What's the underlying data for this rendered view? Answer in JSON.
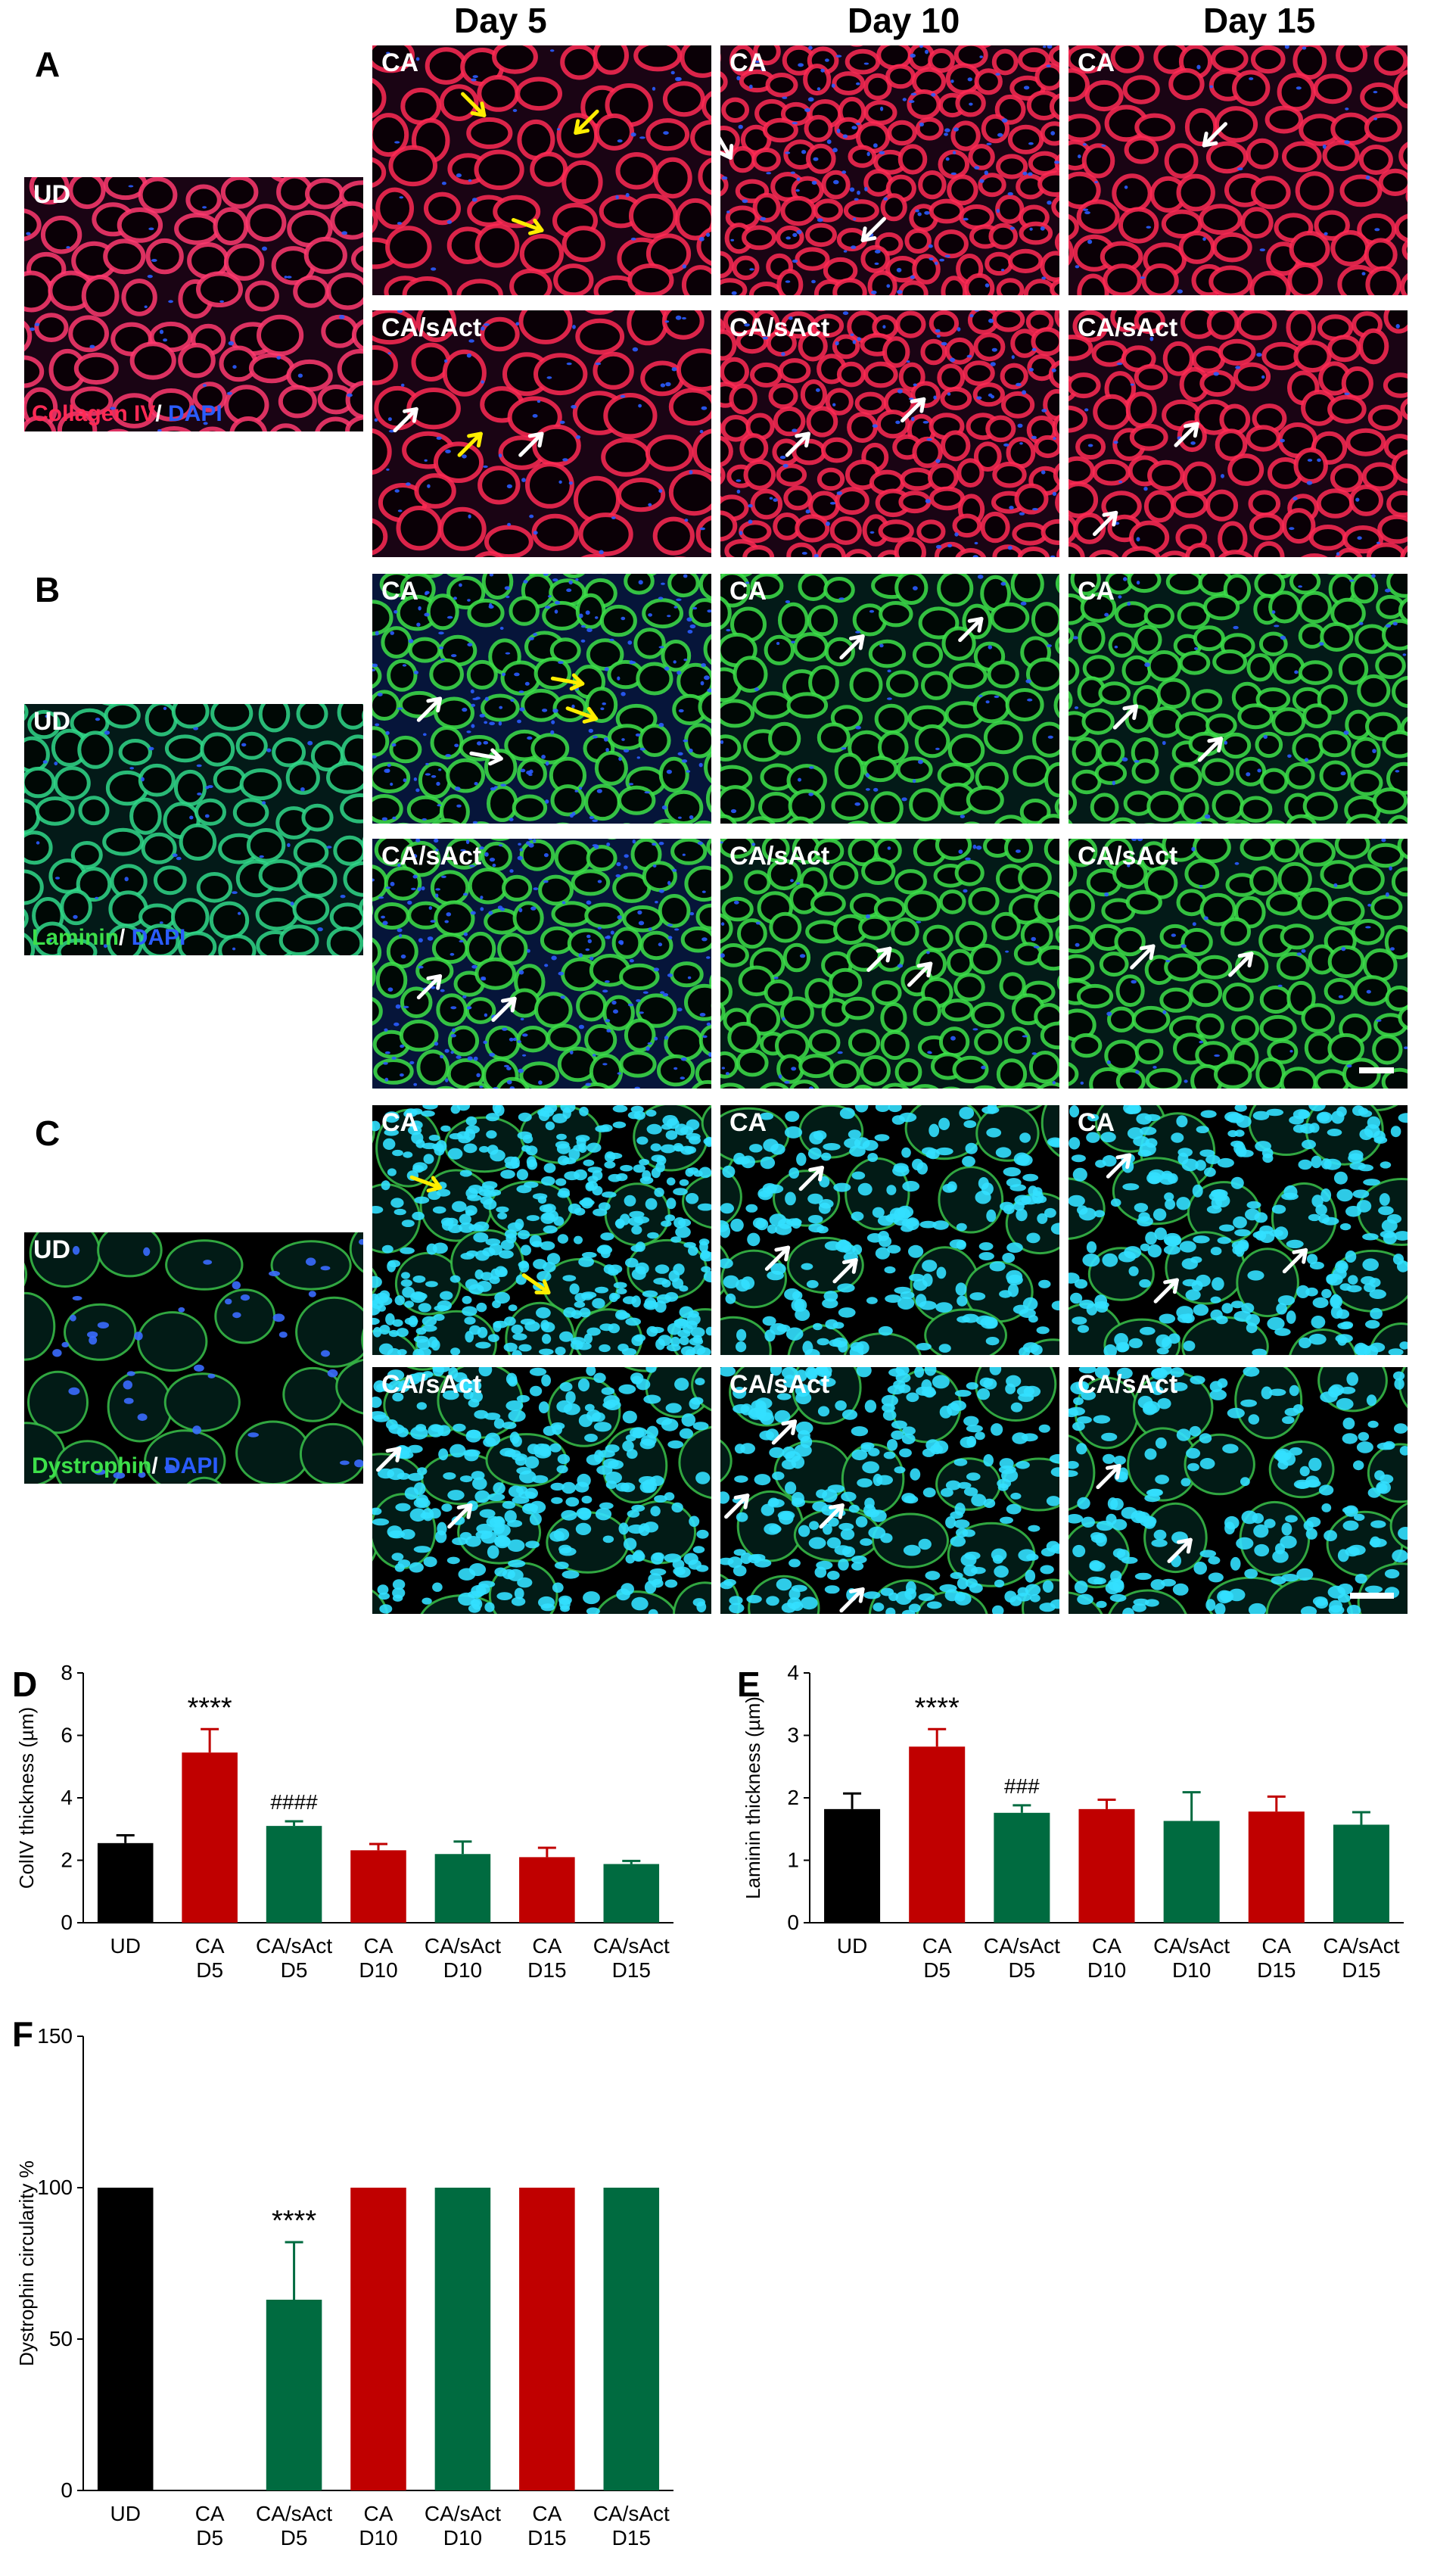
{
  "columns": [
    "Day 5",
    "Day 10",
    "Day 15"
  ],
  "panel_letters": {
    "a": "A",
    "b": "B",
    "c": "C",
    "d": "D",
    "e": "E",
    "f": "F"
  },
  "labels": {
    "ud": "UD",
    "ca": "CA",
    "ca_sact": "CA/sAct"
  },
  "stains": {
    "a": {
      "marker": "Collagen IV",
      "sep": "/ ",
      "dapi": "DAPI"
    },
    "b": {
      "marker": "Laminin",
      "sep": "/ ",
      "dapi": "DAPI"
    },
    "c": {
      "marker": "Dystrophin",
      "sep": "/ ",
      "dapi": "DAPI"
    }
  },
  "colors": {
    "ud_bar": "#000000",
    "ca_bar": "#c00000",
    "ca_sact_bar": "#006b40",
    "collagen": "#ff2a55",
    "laminin": "#3de04a",
    "dapi": "#2a5cff",
    "dapi_bright": "#33e0ff",
    "yellow_arrow": "#ffee00",
    "white_arrow": "#ffffff"
  },
  "chart_data": [
    {
      "id": "d",
      "type": "bar",
      "ylabel": "ColIV thickness (µm)",
      "ylim": [
        0,
        8
      ],
      "yticks": [
        0,
        2,
        4,
        6,
        8
      ],
      "categories": [
        [
          "UD"
        ],
        [
          "CA",
          "D5"
        ],
        [
          "CA/sAct",
          "D5"
        ],
        [
          "CA",
          "D10"
        ],
        [
          "CA/sAct",
          "D10"
        ],
        [
          "CA",
          "D15"
        ],
        [
          "CA/sAct",
          "D15"
        ]
      ],
      "values": [
        2.55,
        5.45,
        3.1,
        2.32,
        2.2,
        2.1,
        1.88
      ],
      "errors": [
        0.25,
        0.75,
        0.15,
        0.2,
        0.4,
        0.3,
        0.1
      ],
      "group": [
        "ud",
        "ca",
        "ca_sact",
        "ca",
        "ca_sact",
        "ca",
        "ca_sact"
      ],
      "annotations": [
        {
          "index": 1,
          "text": "****"
        },
        {
          "index": 2,
          "text": "####"
        }
      ]
    },
    {
      "id": "e",
      "type": "bar",
      "ylabel": "Laminin thickness (µm)",
      "ylim": [
        0,
        4
      ],
      "yticks": [
        0,
        1,
        2,
        3,
        4
      ],
      "categories": [
        [
          "UD"
        ],
        [
          "CA",
          "D5"
        ],
        [
          "CA/sAct",
          "D5"
        ],
        [
          "CA",
          "D10"
        ],
        [
          "CA/sAct",
          "D10"
        ],
        [
          "CA",
          "D15"
        ],
        [
          "CA/sAct",
          "D15"
        ]
      ],
      "values": [
        1.82,
        2.82,
        1.76,
        1.82,
        1.63,
        1.78,
        1.57
      ],
      "errors": [
        0.25,
        0.28,
        0.12,
        0.15,
        0.46,
        0.24,
        0.2
      ],
      "group": [
        "ud",
        "ca",
        "ca_sact",
        "ca",
        "ca_sact",
        "ca",
        "ca_sact"
      ],
      "annotations": [
        {
          "index": 1,
          "text": "****"
        },
        {
          "index": 2,
          "text": "###"
        }
      ]
    },
    {
      "id": "f",
      "type": "bar",
      "ylabel": "Dystrophin circularity %",
      "ylim": [
        0,
        150
      ],
      "yticks": [
        0,
        50,
        100,
        150
      ],
      "categories": [
        [
          "UD"
        ],
        [
          "CA",
          "D5"
        ],
        [
          "CA/sAct",
          "D5"
        ],
        [
          "CA",
          "D10"
        ],
        [
          "CA/sAct",
          "D10"
        ],
        [
          "CA",
          "D15"
        ],
        [
          "CA/sAct",
          "D15"
        ]
      ],
      "values": [
        100,
        0,
        63,
        100,
        100,
        100,
        100
      ],
      "errors": [
        0,
        0,
        19,
        0,
        0,
        0,
        0
      ],
      "group": [
        "ud",
        "ca",
        "ca_sact",
        "ca",
        "ca_sact",
        "ca",
        "ca_sact"
      ],
      "annotations": [
        {
          "index": 2,
          "text": "****"
        }
      ]
    }
  ]
}
